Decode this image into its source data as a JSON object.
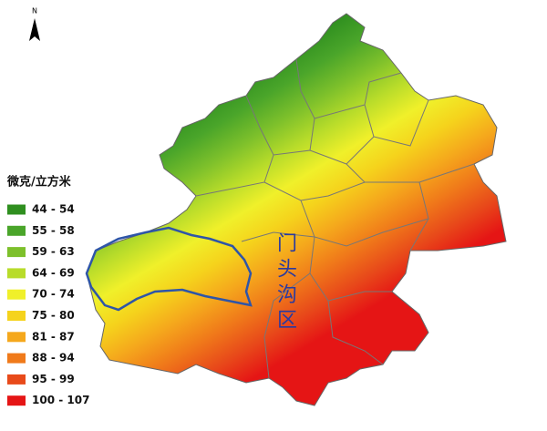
{
  "north_label": "N",
  "legend": {
    "title": "微克/立方米",
    "items": [
      {
        "label": "44 - 54",
        "color": "#2f8f1f"
      },
      {
        "label": "55 - 58",
        "color": "#4aa52a"
      },
      {
        "label": "59 - 63",
        "color": "#7dc02b"
      },
      {
        "label": "64 - 69",
        "color": "#b8dc2a"
      },
      {
        "label": "70 - 74",
        "color": "#f0f02a"
      },
      {
        "label": "75 - 80",
        "color": "#f5d31c"
      },
      {
        "label": "81 - 87",
        "color": "#f5a81c"
      },
      {
        "label": "88 - 94",
        "color": "#f07a1a"
      },
      {
        "label": "95 - 99",
        "color": "#e84a1a"
      },
      {
        "label": "100 - 107",
        "color": "#e51515"
      }
    ]
  },
  "map": {
    "district_label": "门头沟区"
  }
}
